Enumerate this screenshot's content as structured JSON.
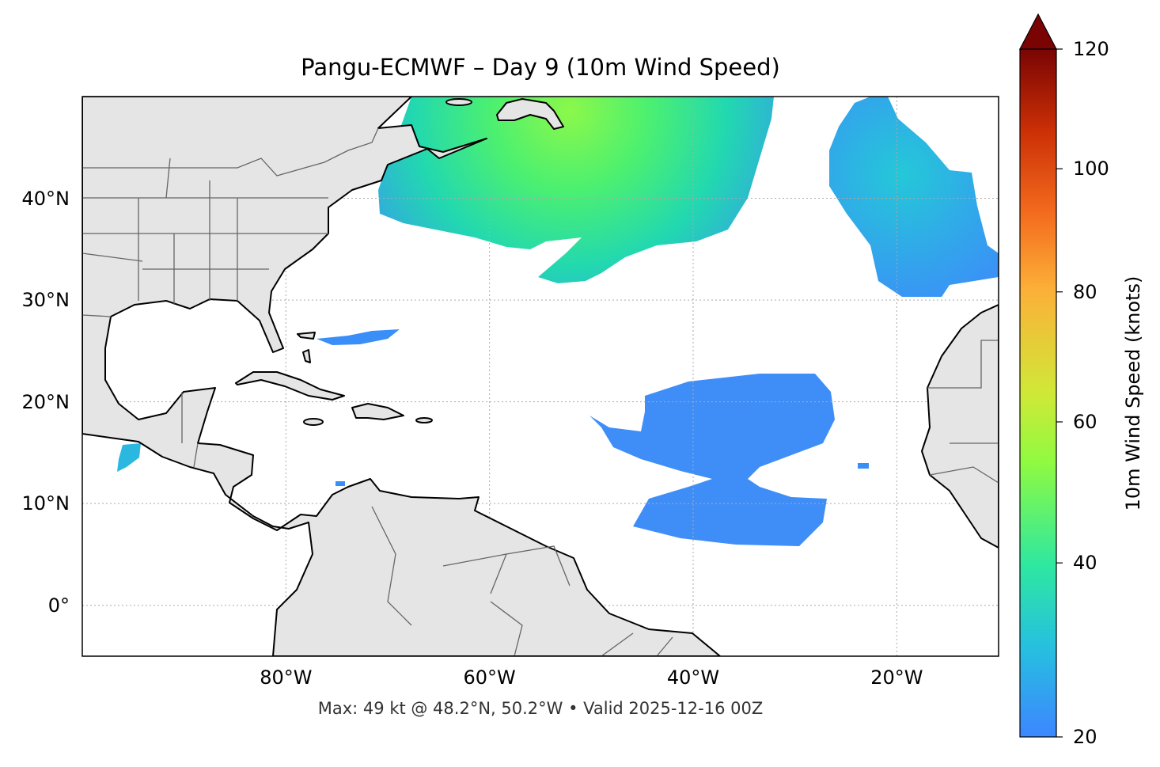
{
  "title": "Pangu-ECMWF – Day 9 (10m Wind Speed)",
  "footer": "Max: 49 kt @ 48.2°N, 50.2°W • Valid 2025-12-16 00Z",
  "map": {
    "projection": "PlateCarree",
    "lon_range": [
      -100,
      -10
    ],
    "lat_range": [
      -5,
      50
    ],
    "gridlines": true,
    "land_color": "#e5e5e5",
    "lat_ticks": [
      {
        "value": 40,
        "label": "40°N"
      },
      {
        "value": 30,
        "label": "30°N"
      },
      {
        "value": 20,
        "label": "20°N"
      },
      {
        "value": 10,
        "label": "10°N"
      },
      {
        "value": 0,
        "label": "0°"
      }
    ],
    "lon_ticks": [
      {
        "value": -80,
        "label": "80°W"
      },
      {
        "value": -60,
        "label": "60°W"
      },
      {
        "value": -40,
        "label": "40°W"
      },
      {
        "value": -20,
        "label": "20°W"
      }
    ]
  },
  "colorbar": {
    "label": "10m Wind Speed (knots)",
    "range": [
      20,
      120
    ],
    "extend": "max",
    "colormap": "turbo",
    "ticks": [
      "20",
      "40",
      "60",
      "80",
      "100",
      "120"
    ]
  }
}
